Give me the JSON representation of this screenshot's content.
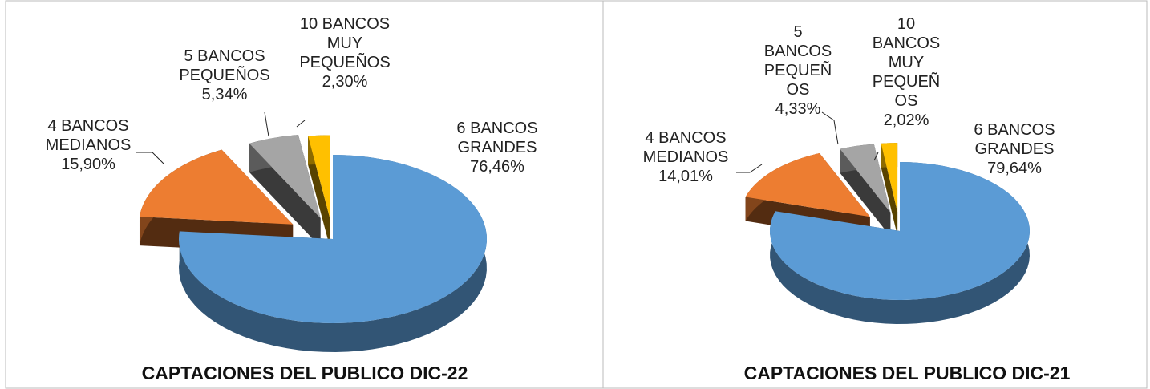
{
  "chart_data": [
    {
      "type": "pie",
      "title": "CAPTACIONES DEL PUBLICO DIC-22",
      "categories": [
        "6 BANCOS GRANDES",
        "4 BANCOS MEDIANOS",
        "5 BANCOS PEQUEÑOS",
        "10 BANCOS MUY PEQUEÑOS"
      ],
      "values": [
        76.46,
        15.9,
        5.34,
        2.3
      ],
      "value_labels": [
        "76,46%",
        "15,90%",
        "5,34%",
        "2,30%"
      ],
      "colors": [
        "#5b9bd5",
        "#ed7d31",
        "#a5a5a5",
        "#ffc000"
      ]
    },
    {
      "type": "pie",
      "title": "CAPTACIONES DEL PUBLICO DIC-21",
      "categories": [
        "6 BANCOS GRANDES",
        "4 BANCOS MEDIANOS",
        "5 BANCOS PEQUEÑOS",
        "10 BANCOS MUY PEQUEÑOS"
      ],
      "values": [
        79.64,
        14.01,
        4.33,
        2.02
      ],
      "value_labels": [
        "79,64%",
        "14,01%",
        "4,33%",
        "2,02%"
      ],
      "colors": [
        "#5b9bd5",
        "#ed7d31",
        "#a5a5a5",
        "#ffc000"
      ]
    }
  ]
}
